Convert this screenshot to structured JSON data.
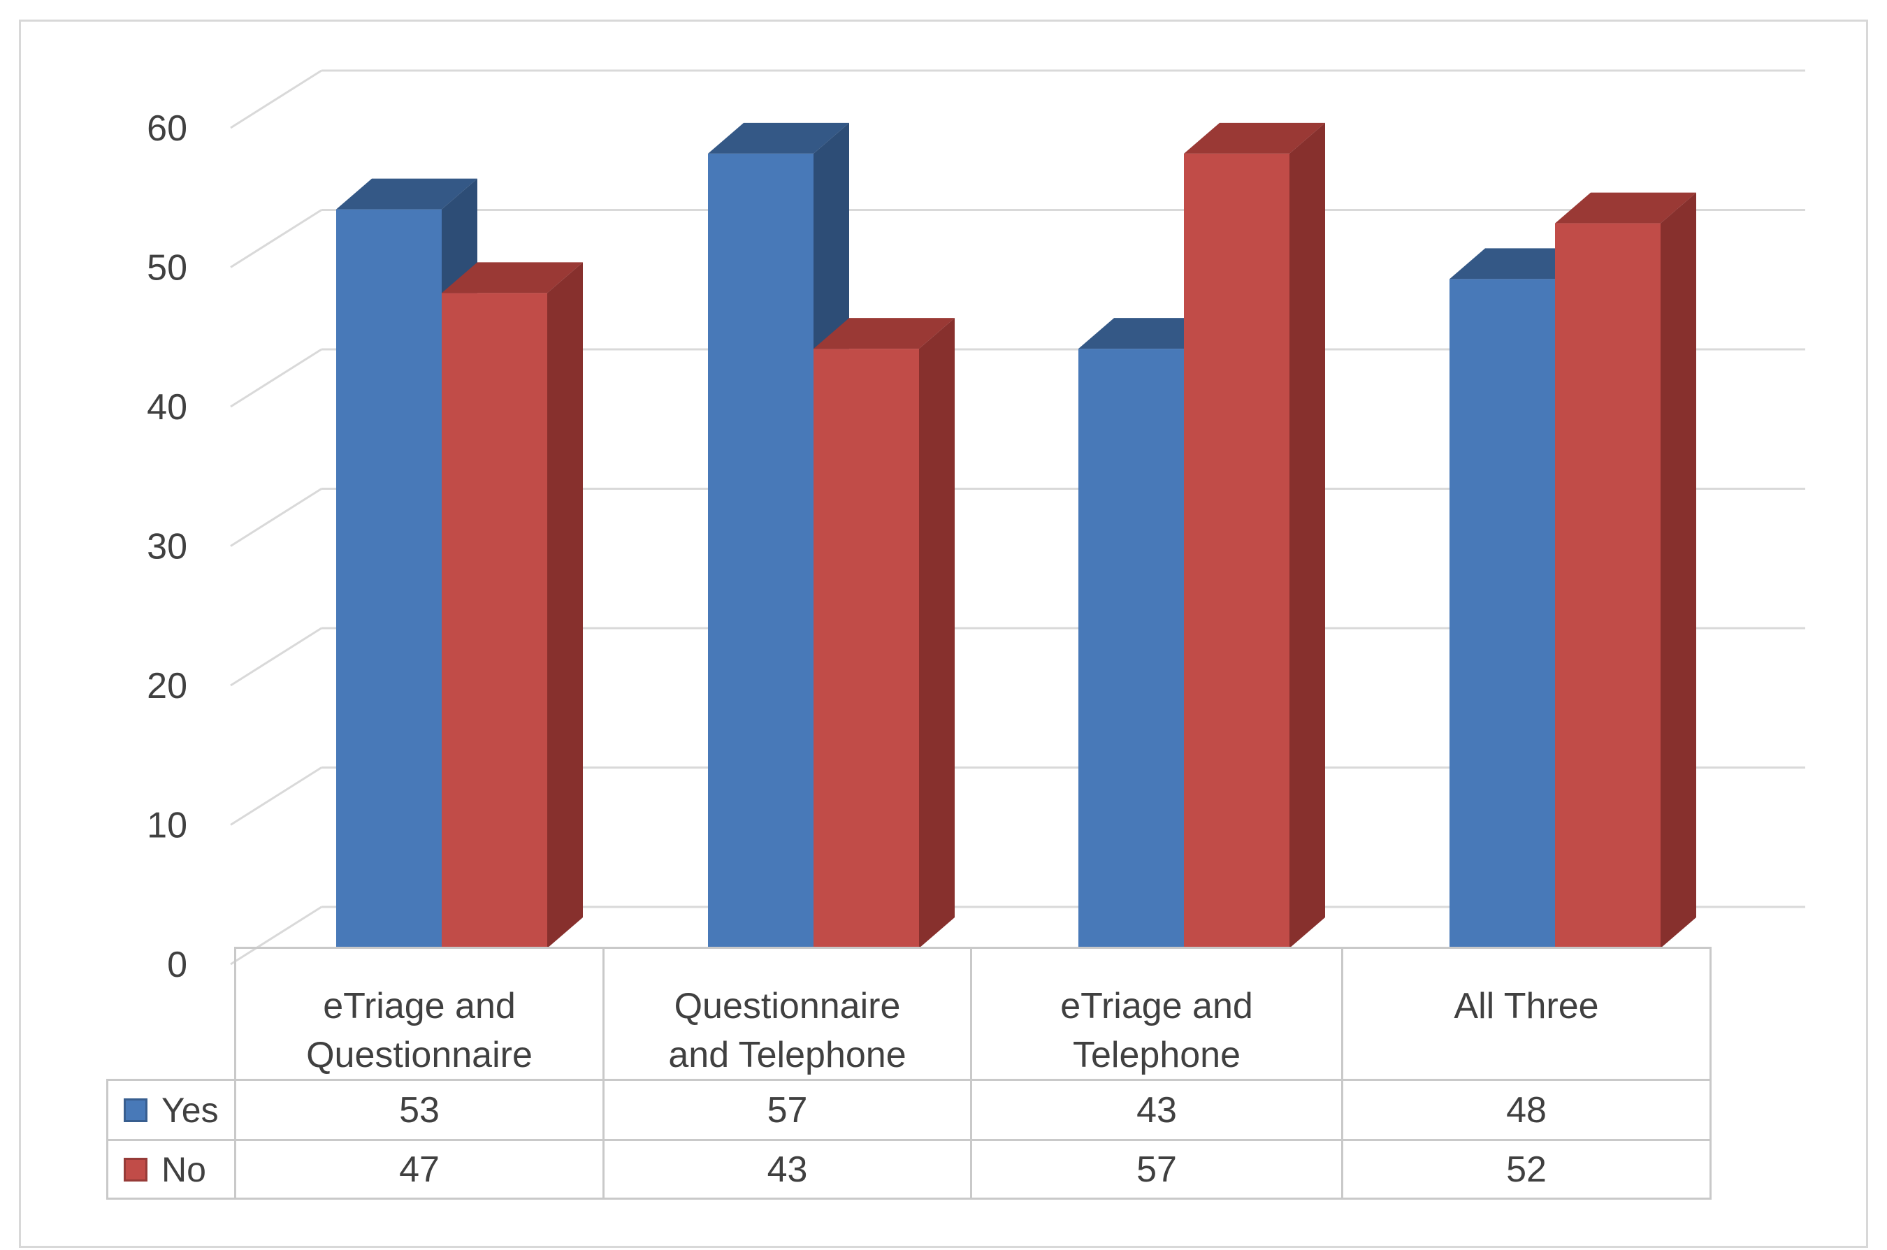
{
  "chart": {
    "title": "",
    "background": "#FFFFFF"
  },
  "chart_data": {
    "type": "bar",
    "style": "3d-clustered-column",
    "title": "",
    "xlabel": "",
    "ylabel": "",
    "grid": true,
    "legend_position": "data-table-left",
    "categories": [
      "eTriage and\nQuestionnaire",
      "Questionnaire\nand Telephone",
      "eTriage and\nTelephone",
      "All Three"
    ],
    "series": [
      {
        "name": "Yes",
        "values": [
          53,
          57,
          43,
          48
        ],
        "color": "#4879B8",
        "color_top": "#345886",
        "color_side": "#2D4D76"
      },
      {
        "name": "No",
        "values": [
          47,
          43,
          57,
          52
        ],
        "color": "#C14C48",
        "color_top": "#9A3935",
        "color_side": "#87302D"
      }
    ],
    "ylim": [
      0,
      60
    ],
    "yticks": [
      0,
      10,
      20,
      30,
      40,
      50,
      60
    ]
  },
  "colors": {
    "grid_line": "#d9d9d9",
    "table_line": "#c9c9c9",
    "outer_border": "#d8d8d8",
    "text": "#404040",
    "background": "#ffffff"
  }
}
